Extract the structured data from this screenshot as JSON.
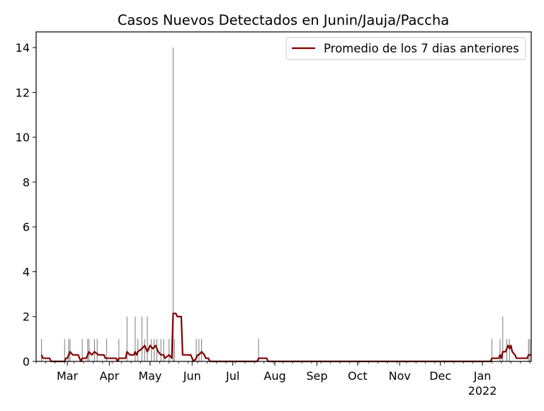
{
  "chart_data": {
    "type": "bar",
    "title": "Casos Nuevos Detectados en Junin/Jauja/Paccha",
    "xlabel": "",
    "ylabel": "",
    "x_axis": "date",
    "xlim": [
      "2021-02-06",
      "2022-02-06"
    ],
    "ylim": [
      0,
      14.7
    ],
    "yticks": [
      0,
      2,
      4,
      6,
      8,
      10,
      12,
      14
    ],
    "xticks": [
      {
        "date": "2021-03-01",
        "label": "Mar"
      },
      {
        "date": "2021-04-01",
        "label": "Apr"
      },
      {
        "date": "2021-05-01",
        "label": "May"
      },
      {
        "date": "2021-06-01",
        "label": "Jun"
      },
      {
        "date": "2021-07-01",
        "label": "Jul"
      },
      {
        "date": "2021-08-01",
        "label": "Aug"
      },
      {
        "date": "2021-09-01",
        "label": "Sep"
      },
      {
        "date": "2021-10-01",
        "label": "Oct"
      },
      {
        "date": "2021-11-01",
        "label": "Nov"
      },
      {
        "date": "2021-12-01",
        "label": "Dec"
      },
      {
        "date": "2022-01-01",
        "label": "Jan",
        "sublabel": "2022"
      }
    ],
    "grid": false,
    "legend_position": "top-right",
    "bars": {
      "color": "#808080",
      "dates": [
        "2021-02-10",
        "2021-02-27",
        "2021-03-02",
        "2021-03-03",
        "2021-03-12",
        "2021-03-16",
        "2021-03-17",
        "2021-03-21",
        "2021-03-23",
        "2021-03-30",
        "2021-04-08",
        "2021-04-14",
        "2021-04-20",
        "2021-04-22",
        "2021-04-25",
        "2021-04-27",
        "2021-04-29",
        "2021-05-02",
        "2021-05-04",
        "2021-05-06",
        "2021-05-09",
        "2021-05-11",
        "2021-05-15",
        "2021-05-18",
        "2021-05-19",
        "2021-06-04",
        "2021-06-06",
        "2021-06-08",
        "2021-07-20",
        "2022-01-08",
        "2022-01-14",
        "2022-01-16",
        "2022-01-19",
        "2022-01-21",
        "2022-02-04",
        "2022-02-05"
      ],
      "values": [
        1,
        1,
        1,
        1,
        1,
        1,
        1,
        1,
        1,
        1,
        1,
        2,
        2,
        1,
        2,
        1,
        2,
        1,
        1,
        1,
        1,
        1,
        1,
        14,
        1,
        1,
        1,
        1,
        1,
        1,
        1,
        2,
        1,
        1,
        1,
        1
      ]
    },
    "series": [
      {
        "name": "Promedio de los 7 dias anteriores",
        "color": "#800000",
        "points": [
          [
            "2021-02-10",
            0.29
          ],
          [
            "2021-02-11",
            0.14
          ],
          [
            "2021-02-16",
            0.14
          ],
          [
            "2021-02-17",
            0
          ],
          [
            "2021-02-27",
            0
          ],
          [
            "2021-02-28",
            0.14
          ],
          [
            "2021-03-01",
            0.14
          ],
          [
            "2021-03-02",
            0.29
          ],
          [
            "2021-03-03",
            0.43
          ],
          [
            "2021-03-05",
            0.29
          ],
          [
            "2021-03-09",
            0.29
          ],
          [
            "2021-03-10",
            0.14
          ],
          [
            "2021-03-11",
            0
          ],
          [
            "2021-03-12",
            0.14
          ],
          [
            "2021-03-15",
            0.14
          ],
          [
            "2021-03-16",
            0.29
          ],
          [
            "2021-03-17",
            0.43
          ],
          [
            "2021-03-19",
            0.29
          ],
          [
            "2021-03-21",
            0.43
          ],
          [
            "2021-03-24",
            0.29
          ],
          [
            "2021-03-28",
            0.29
          ],
          [
            "2021-03-29",
            0.14
          ],
          [
            "2021-03-30",
            0.14
          ],
          [
            "2021-04-06",
            0.14
          ],
          [
            "2021-04-07",
            0
          ],
          [
            "2021-04-08",
            0.14
          ],
          [
            "2021-04-13",
            0.14
          ],
          [
            "2021-04-14",
            0.43
          ],
          [
            "2021-04-16",
            0.29
          ],
          [
            "2021-04-19",
            0.29
          ],
          [
            "2021-04-20",
            0.43
          ],
          [
            "2021-04-21",
            0.29
          ],
          [
            "2021-04-22",
            0.43
          ],
          [
            "2021-04-25",
            0.57
          ],
          [
            "2021-04-27",
            0.71
          ],
          [
            "2021-04-29",
            0.43
          ],
          [
            "2021-05-01",
            0.71
          ],
          [
            "2021-05-03",
            0.57
          ],
          [
            "2021-05-05",
            0.71
          ],
          [
            "2021-05-07",
            0.43
          ],
          [
            "2021-05-09",
            0.29
          ],
          [
            "2021-05-11",
            0.29
          ],
          [
            "2021-05-12",
            0.14
          ],
          [
            "2021-05-15",
            0.29
          ],
          [
            "2021-05-17",
            0.14
          ],
          [
            "2021-05-18",
            2.14
          ],
          [
            "2021-05-20",
            2.14
          ],
          [
            "2021-05-21",
            2.0
          ],
          [
            "2021-05-24",
            2.0
          ],
          [
            "2021-05-25",
            0.29
          ],
          [
            "2021-05-31",
            0.29
          ],
          [
            "2021-06-02",
            0
          ],
          [
            "2021-06-04",
            0.14
          ],
          [
            "2021-06-05",
            0.29
          ],
          [
            "2021-06-06",
            0.29
          ],
          [
            "2021-06-08",
            0.43
          ],
          [
            "2021-06-10",
            0.29
          ],
          [
            "2021-06-11",
            0.14
          ],
          [
            "2021-06-13",
            0.14
          ],
          [
            "2021-06-14",
            0
          ],
          [
            "2021-07-19",
            0
          ],
          [
            "2021-07-20",
            0.14
          ],
          [
            "2021-07-26",
            0.14
          ],
          [
            "2021-07-27",
            0
          ],
          [
            "2022-01-07",
            0
          ],
          [
            "2022-01-08",
            0.14
          ],
          [
            "2022-01-13",
            0.14
          ],
          [
            "2022-01-14",
            0.29
          ],
          [
            "2022-01-15",
            0.14
          ],
          [
            "2022-01-16",
            0.43
          ],
          [
            "2022-01-18",
            0.43
          ],
          [
            "2022-01-19",
            0.57
          ],
          [
            "2022-01-20",
            0.71
          ],
          [
            "2022-01-21",
            0.57
          ],
          [
            "2022-01-22",
            0.71
          ],
          [
            "2022-01-23",
            0.43
          ],
          [
            "2022-01-25",
            0.29
          ],
          [
            "2022-01-26",
            0.14
          ],
          [
            "2022-02-03",
            0.14
          ],
          [
            "2022-02-04",
            0.29
          ],
          [
            "2022-02-06",
            0.29
          ]
        ]
      }
    ]
  },
  "colors": {
    "axis": "#000000",
    "background": "#ffffff"
  }
}
